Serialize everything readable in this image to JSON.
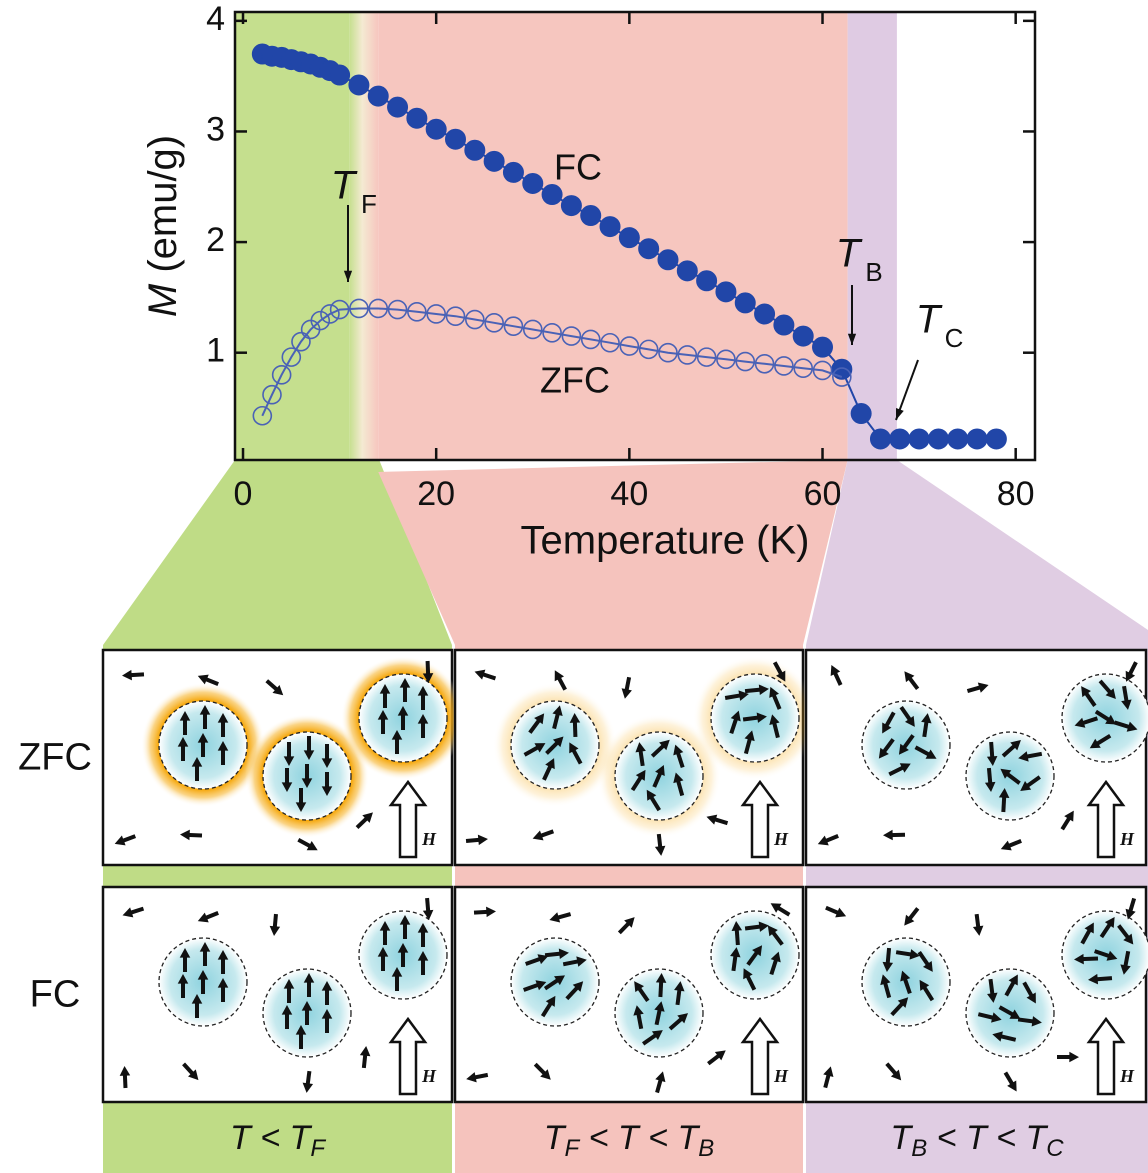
{
  "chart_data": {
    "type": "line",
    "xlabel": "Temperature (K)",
    "ylabel": [
      "M",
      " (emu/g)"
    ],
    "xlim": [
      -0.83,
      82.0
    ],
    "ylim": [
      0.03,
      4.08
    ],
    "xticks": [
      0,
      20,
      40,
      60,
      80
    ],
    "yticks": [
      1,
      2,
      3,
      4
    ],
    "bands": [
      {
        "range": [
          -0.83,
          11
        ],
        "color": "#c5df8e"
      },
      {
        "range": [
          14,
          62.6
        ],
        "color": "#f6c6bf"
      },
      {
        "range": [
          62.6,
          67.7
        ],
        "color": "#dfcbe3"
      }
    ],
    "series": [
      {
        "name": "FC",
        "color": "#2146a8",
        "marker": "filled",
        "x": [
          2,
          3,
          4,
          5,
          6,
          7,
          8,
          9,
          10,
          12,
          14,
          16,
          18,
          20,
          22,
          24,
          26,
          28,
          30,
          32,
          34,
          36,
          38,
          40,
          42,
          44,
          46,
          48,
          50,
          52,
          54,
          56,
          58,
          60,
          62,
          64,
          66,
          68,
          70,
          72,
          74,
          76,
          78
        ],
        "values": [
          3.7,
          3.68,
          3.67,
          3.65,
          3.63,
          3.61,
          3.58,
          3.55,
          3.51,
          3.42,
          3.32,
          3.22,
          3.12,
          3.02,
          2.93,
          2.83,
          2.73,
          2.63,
          2.53,
          2.43,
          2.33,
          2.24,
          2.14,
          2.04,
          1.94,
          1.84,
          1.74,
          1.65,
          1.55,
          1.45,
          1.35,
          1.25,
          1.15,
          1.05,
          0.85,
          0.45,
          0.22,
          0.22,
          0.22,
          0.22,
          0.22,
          0.22,
          0.22
        ]
      },
      {
        "name": "ZFC",
        "color": "#4a62b6",
        "marker": "open",
        "x": [
          2,
          3,
          4,
          5,
          6,
          7,
          8,
          9,
          10,
          12,
          14,
          16,
          18,
          20,
          22,
          24,
          26,
          28,
          30,
          32,
          34,
          36,
          38,
          40,
          42,
          44,
          46,
          48,
          50,
          52,
          54,
          56,
          58,
          60,
          62
        ],
        "values": [
          0.43,
          0.62,
          0.8,
          0.96,
          1.1,
          1.21,
          1.29,
          1.35,
          1.39,
          1.4,
          1.4,
          1.39,
          1.37,
          1.35,
          1.33,
          1.3,
          1.27,
          1.24,
          1.21,
          1.18,
          1.15,
          1.12,
          1.09,
          1.06,
          1.03,
          1.0,
          0.98,
          0.96,
          0.94,
          0.92,
          0.9,
          0.88,
          0.86,
          0.84,
          0.78
        ]
      }
    ],
    "annotations": [
      [
        "T",
        "F"
      ],
      [
        "T",
        "B"
      ],
      [
        "T",
        "C"
      ]
    ]
  },
  "diagram": {
    "rows": [
      "ZFC",
      "FC"
    ],
    "columns": [
      [
        "T < T",
        "F"
      ],
      [
        "T",
        "F",
        " < T < T",
        "B"
      ],
      [
        "T",
        "B",
        " < T < T",
        "C"
      ]
    ],
    "field_label": "H"
  }
}
